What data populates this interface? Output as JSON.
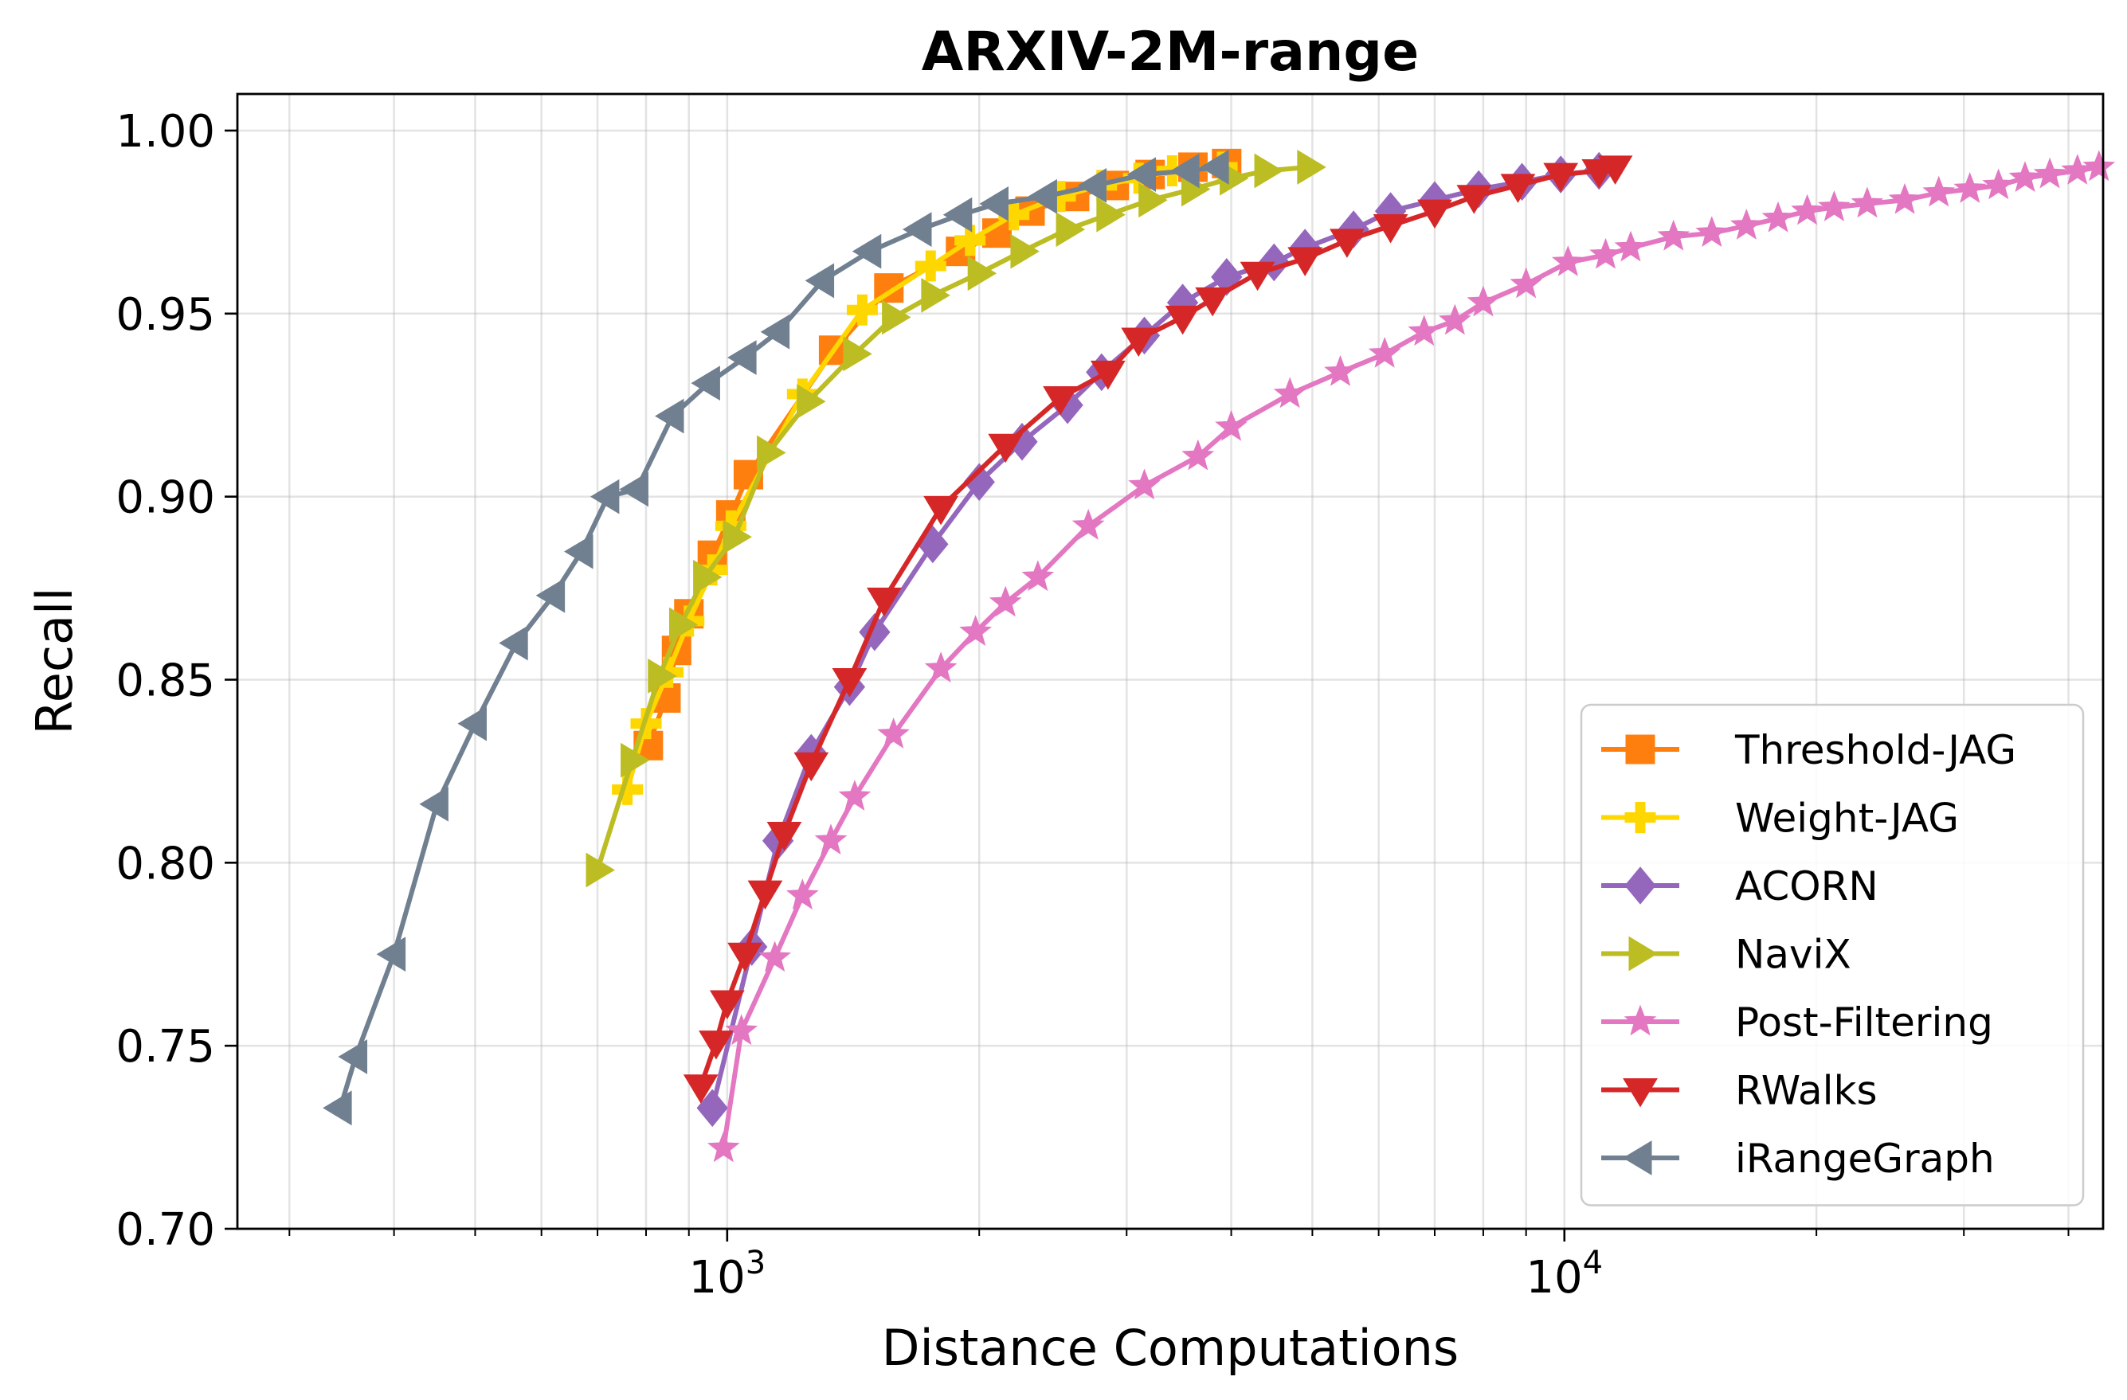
{
  "chart_data": {
    "type": "line",
    "title": "ARXIV-2M-range",
    "xlabel": "Distance Computations",
    "ylabel": "Recall",
    "xscale": "log",
    "xlim": [
      260,
      44000
    ],
    "ylim": [
      0.7,
      1.01
    ],
    "x_ticks": [
      {
        "value": 1000,
        "base": "10",
        "exp": "3"
      },
      {
        "value": 10000,
        "base": "10",
        "exp": "4"
      }
    ],
    "y_ticks": [
      "0.70",
      "0.75",
      "0.80",
      "0.85",
      "0.90",
      "0.95",
      "1.00"
    ],
    "grid": true,
    "legend_position": "lower-right",
    "series": [
      {
        "name": "Threshold-JAG",
        "color": "#ff7f0e",
        "marker": "square",
        "points": [
          [
            805,
            0.832
          ],
          [
            845,
            0.845
          ],
          [
            870,
            0.858
          ],
          [
            900,
            0.868
          ],
          [
            960,
            0.884
          ],
          [
            1010,
            0.895
          ],
          [
            1060,
            0.906
          ],
          [
            1340,
            0.94
          ],
          [
            1560,
            0.957
          ],
          [
            1900,
            0.967
          ],
          [
            2100,
            0.972
          ],
          [
            2300,
            0.978
          ],
          [
            2600,
            0.982
          ],
          [
            2900,
            0.985
          ],
          [
            3200,
            0.988
          ],
          [
            3600,
            0.99
          ],
          [
            3950,
            0.991
          ]
        ]
      },
      {
        "name": "Weight-JAG",
        "color": "#ffd700",
        "marker": "plus",
        "points": [
          [
            760,
            0.82
          ],
          [
            800,
            0.838
          ],
          [
            850,
            0.852
          ],
          [
            900,
            0.866
          ],
          [
            960,
            0.88
          ],
          [
            1010,
            0.892
          ],
          [
            1230,
            0.928
          ],
          [
            1450,
            0.951
          ],
          [
            1750,
            0.963
          ],
          [
            1950,
            0.97
          ],
          [
            2200,
            0.977
          ],
          [
            2500,
            0.982
          ],
          [
            2800,
            0.985
          ],
          [
            3100,
            0.987
          ],
          [
            3400,
            0.989
          ],
          [
            3900,
            0.99
          ]
        ]
      },
      {
        "name": "ACORN",
        "color": "#9467bd",
        "marker": "diamond",
        "points": [
          [
            960,
            0.733
          ],
          [
            1070,
            0.777
          ],
          [
            1150,
            0.806
          ],
          [
            1260,
            0.83
          ],
          [
            1400,
            0.848
          ],
          [
            1500,
            0.863
          ],
          [
            1760,
            0.887
          ],
          [
            2000,
            0.904
          ],
          [
            2250,
            0.915
          ],
          [
            2550,
            0.925
          ],
          [
            2800,
            0.934
          ],
          [
            3150,
            0.944
          ],
          [
            3500,
            0.953
          ],
          [
            3950,
            0.96
          ],
          [
            4500,
            0.964
          ],
          [
            4900,
            0.968
          ],
          [
            5600,
            0.973
          ],
          [
            6200,
            0.978
          ],
          [
            7000,
            0.981
          ],
          [
            7900,
            0.984
          ],
          [
            8900,
            0.986
          ],
          [
            9900,
            0.988
          ],
          [
            11000,
            0.989
          ]
        ]
      },
      {
        "name": "NaviX",
        "color": "#bcbd22",
        "marker": "triangle-right",
        "points": [
          [
            700,
            0.798
          ],
          [
            770,
            0.828
          ],
          [
            830,
            0.851
          ],
          [
            880,
            0.865
          ],
          [
            940,
            0.878
          ],
          [
            1020,
            0.889
          ],
          [
            1120,
            0.912
          ],
          [
            1250,
            0.926
          ],
          [
            1420,
            0.939
          ],
          [
            1580,
            0.949
          ],
          [
            1760,
            0.955
          ],
          [
            2000,
            0.961
          ],
          [
            2250,
            0.967
          ],
          [
            2550,
            0.973
          ],
          [
            2850,
            0.977
          ],
          [
            3200,
            0.981
          ],
          [
            3600,
            0.984
          ],
          [
            4000,
            0.987
          ],
          [
            4400,
            0.989
          ],
          [
            4950,
            0.99
          ]
        ]
      },
      {
        "name": "Post-Filtering",
        "color": "#e377c2",
        "marker": "star",
        "points": [
          [
            990,
            0.722
          ],
          [
            1040,
            0.754
          ],
          [
            1140,
            0.774
          ],
          [
            1230,
            0.791
          ],
          [
            1330,
            0.806
          ],
          [
            1420,
            0.818
          ],
          [
            1580,
            0.835
          ],
          [
            1800,
            0.853
          ],
          [
            1980,
            0.863
          ],
          [
            2150,
            0.871
          ],
          [
            2350,
            0.878
          ],
          [
            2700,
            0.892
          ],
          [
            3150,
            0.903
          ],
          [
            3650,
            0.911
          ],
          [
            4000,
            0.919
          ],
          [
            4700,
            0.928
          ],
          [
            5400,
            0.934
          ],
          [
            6100,
            0.939
          ],
          [
            6800,
            0.945
          ],
          [
            7400,
            0.948
          ],
          [
            8000,
            0.953
          ],
          [
            9000,
            0.958
          ],
          [
            10100,
            0.964
          ],
          [
            11200,
            0.966
          ],
          [
            12000,
            0.968
          ],
          [
            13500,
            0.971
          ],
          [
            15000,
            0.972
          ],
          [
            16500,
            0.974
          ],
          [
            18000,
            0.976
          ],
          [
            19500,
            0.978
          ],
          [
            21000,
            0.979
          ],
          [
            23000,
            0.98
          ],
          [
            25500,
            0.981
          ],
          [
            28000,
            0.983
          ],
          [
            30500,
            0.984
          ],
          [
            33000,
            0.985
          ],
          [
            35500,
            0.987
          ],
          [
            38000,
            0.988
          ],
          [
            41000,
            0.989
          ],
          [
            43500,
            0.99
          ]
        ]
      },
      {
        "name": "RWalks",
        "color": "#d62728",
        "marker": "triangle-down",
        "points": [
          [
            930,
            0.739
          ],
          [
            970,
            0.751
          ],
          [
            1000,
            0.762
          ],
          [
            1050,
            0.775
          ],
          [
            1110,
            0.792
          ],
          [
            1170,
            0.808
          ],
          [
            1260,
            0.827
          ],
          [
            1400,
            0.85
          ],
          [
            1540,
            0.872
          ],
          [
            1800,
            0.897
          ],
          [
            2150,
            0.914
          ],
          [
            2500,
            0.927
          ],
          [
            2850,
            0.934
          ],
          [
            3100,
            0.943
          ],
          [
            3500,
            0.949
          ],
          [
            3800,
            0.954
          ],
          [
            4300,
            0.961
          ],
          [
            4900,
            0.965
          ],
          [
            5500,
            0.97
          ],
          [
            6200,
            0.974
          ],
          [
            7000,
            0.978
          ],
          [
            7800,
            0.982
          ],
          [
            8800,
            0.985
          ],
          [
            9900,
            0.988
          ],
          [
            11000,
            0.989
          ],
          [
            11500,
            0.99
          ]
        ]
      },
      {
        "name": "iRangeGraph",
        "color": "#708090",
        "marker": "triangle-left",
        "points": [
          [
            345,
            0.733
          ],
          [
            360,
            0.747
          ],
          [
            400,
            0.775
          ],
          [
            450,
            0.816
          ],
          [
            500,
            0.838
          ],
          [
            560,
            0.86
          ],
          [
            620,
            0.873
          ],
          [
            670,
            0.885
          ],
          [
            720,
            0.9
          ],
          [
            780,
            0.902
          ],
          [
            860,
            0.922
          ],
          [
            950,
            0.931
          ],
          [
            1050,
            0.938
          ],
          [
            1150,
            0.945
          ],
          [
            1300,
            0.959
          ],
          [
            1480,
            0.967
          ],
          [
            1700,
            0.973
          ],
          [
            1900,
            0.977
          ],
          [
            2100,
            0.98
          ],
          [
            2400,
            0.982
          ],
          [
            2750,
            0.985
          ],
          [
            3150,
            0.988
          ],
          [
            3550,
            0.989
          ],
          [
            3850,
            0.99
          ]
        ]
      }
    ]
  }
}
